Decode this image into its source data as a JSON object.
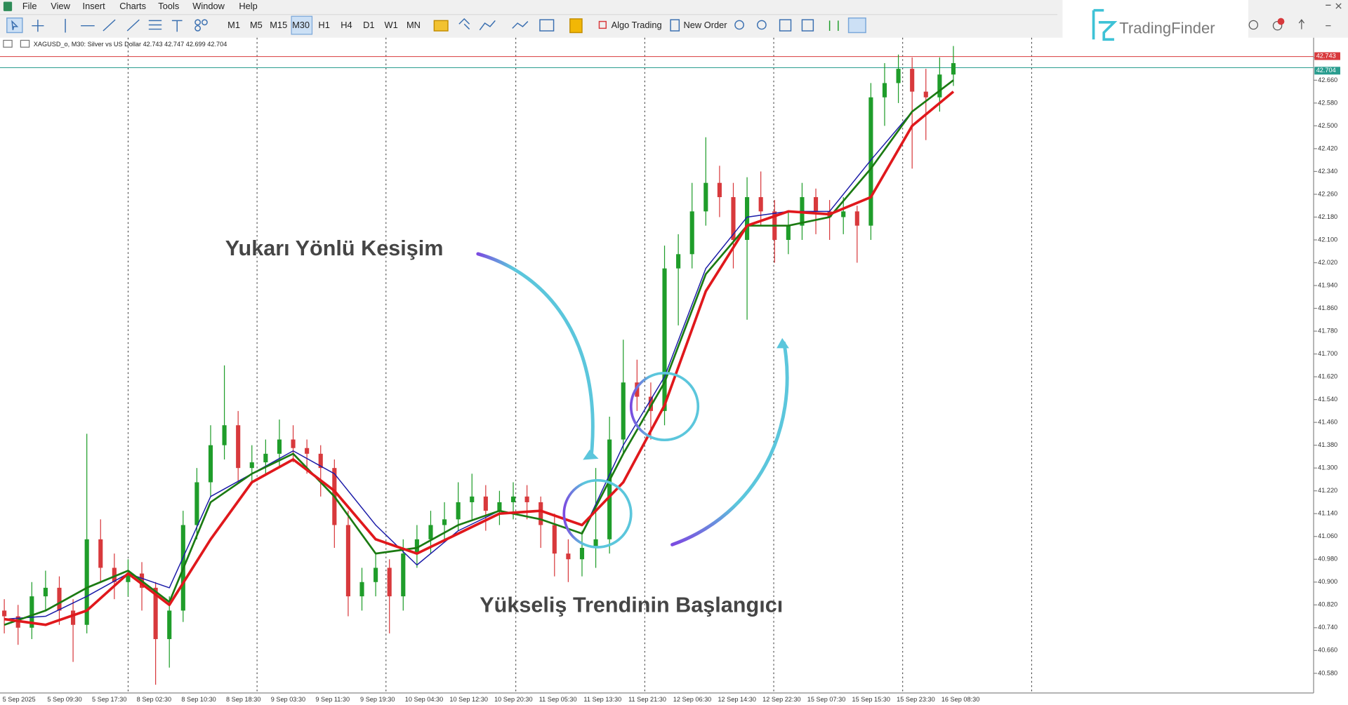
{
  "menu": [
    "File",
    "View",
    "Insert",
    "Charts",
    "Tools",
    "Window",
    "Help"
  ],
  "toolbar": {
    "timeframes": [
      "M1",
      "M5",
      "M15",
      "M30",
      "H1",
      "H4",
      "D1",
      "W1",
      "MN"
    ],
    "active_timeframe": "M30",
    "algo_trading": "Algo Trading",
    "new_order": "New Order"
  },
  "logo": "TradingFinder",
  "chart_data": {
    "type": "candlestick",
    "title": "XAGUSD_o, M30:  Silver vs US Dollar  42.743 42.747 42.699 42.704",
    "up_color": "#1f9d2a",
    "down_color": "#d8393c",
    "ylim": [
      40.511,
      42.806
    ],
    "yticks": [
      {
        "value": 42.74,
        "label": "42.740"
      },
      {
        "value": 42.66,
        "label": "42.660"
      },
      {
        "value": 42.58,
        "label": "42.580"
      },
      {
        "value": 42.5,
        "label": "42.500"
      },
      {
        "value": 42.42,
        "label": "42.420"
      },
      {
        "value": 42.34,
        "label": "42.340"
      },
      {
        "value": 42.26,
        "label": "42.260"
      },
      {
        "value": 42.18,
        "label": "42.180"
      },
      {
        "value": 42.1,
        "label": "42.100"
      },
      {
        "value": 42.02,
        "label": "42.020"
      },
      {
        "value": 41.94,
        "label": "41.940"
      },
      {
        "value": 41.86,
        "label": "41.860"
      },
      {
        "value": 41.78,
        "label": "41.780"
      },
      {
        "value": 41.7,
        "label": "41.700"
      },
      {
        "value": 41.62,
        "label": "41.620"
      },
      {
        "value": 41.54,
        "label": "41.540"
      },
      {
        "value": 41.46,
        "label": "41.460"
      },
      {
        "value": 41.38,
        "label": "41.380"
      },
      {
        "value": 41.3,
        "label": "41.300"
      },
      {
        "value": 41.22,
        "label": "41.220"
      },
      {
        "value": 41.14,
        "label": "41.140"
      },
      {
        "value": 41.06,
        "label": "41.060"
      },
      {
        "value": 40.98,
        "label": "40.980"
      },
      {
        "value": 40.9,
        "label": "40.900"
      },
      {
        "value": 40.82,
        "label": "40.820"
      },
      {
        "value": 40.74,
        "label": "40.740"
      },
      {
        "value": 40.66,
        "label": "40.660"
      },
      {
        "value": 40.58,
        "label": "40.580"
      }
    ],
    "x_labels": [
      "5 Sep 2025",
      "5 Sep 09:30",
      "5 Sep 17:30",
      "8 Sep 02:30",
      "8 Sep 10:30",
      "8 Sep 18:30",
      "9 Sep 03:30",
      "9 Sep 11:30",
      "9 Sep 19:30",
      "10 Sep 04:30",
      "10 Sep 12:30",
      "10 Sep 20:30",
      "11 Sep 05:30",
      "11 Sep 13:30",
      "11 Sep 21:30",
      "12 Sep 06:30",
      "12 Sep 14:30",
      "12 Sep 22:30",
      "15 Sep 07:30",
      "15 Sep 15:30",
      "15 Sep 23:30",
      "16 Sep 08:30"
    ],
    "price_lines": [
      {
        "value": 42.743,
        "color": "#d8393c"
      },
      {
        "value": 42.704,
        "color": "#2a9d8f"
      }
    ],
    "candles": [
      [
        40.8,
        40.84,
        40.72,
        40.78
      ],
      [
        40.78,
        40.82,
        40.68,
        40.74
      ],
      [
        40.74,
        40.9,
        40.7,
        40.85
      ],
      [
        40.85,
        40.94,
        40.8,
        40.88
      ],
      [
        40.88,
        40.92,
        40.75,
        40.8
      ],
      [
        40.8,
        40.84,
        40.62,
        40.75
      ],
      [
        40.75,
        41.42,
        40.72,
        41.05
      ],
      [
        41.05,
        41.12,
        40.9,
        40.95
      ],
      [
        40.95,
        41.0,
        40.84,
        40.9
      ],
      [
        40.9,
        40.98,
        40.85,
        40.93
      ],
      [
        40.93,
        40.97,
        40.8,
        40.88
      ],
      [
        40.88,
        40.9,
        40.54,
        40.7
      ],
      [
        40.7,
        40.85,
        40.6,
        40.8
      ],
      [
        40.8,
        41.15,
        40.76,
        41.1
      ],
      [
        41.1,
        41.3,
        41.05,
        41.25
      ],
      [
        41.25,
        41.45,
        41.2,
        41.38
      ],
      [
        41.38,
        41.66,
        41.33,
        41.45
      ],
      [
        41.45,
        41.5,
        41.25,
        41.3
      ],
      [
        41.3,
        41.38,
        41.25,
        41.32
      ],
      [
        41.32,
        41.4,
        41.28,
        41.35
      ],
      [
        41.35,
        41.47,
        41.3,
        41.4
      ],
      [
        41.4,
        41.45,
        41.32,
        41.37
      ],
      [
        41.37,
        41.4,
        41.28,
        41.35
      ],
      [
        41.35,
        41.38,
        41.2,
        41.3
      ],
      [
        41.3,
        41.33,
        41.02,
        41.1
      ],
      [
        41.1,
        41.15,
        40.78,
        40.85
      ],
      [
        40.85,
        40.95,
        40.8,
        40.9
      ],
      [
        40.9,
        41.0,
        40.85,
        40.95
      ],
      [
        40.95,
        40.98,
        40.72,
        40.85
      ],
      [
        40.85,
        41.05,
        40.8,
        41.0
      ],
      [
        41.0,
        41.1,
        40.95,
        41.05
      ],
      [
        41.05,
        41.15,
        41.0,
        41.1
      ],
      [
        41.1,
        41.18,
        41.05,
        41.12
      ],
      [
        41.12,
        41.25,
        41.08,
        41.18
      ],
      [
        41.18,
        41.28,
        41.12,
        41.2
      ],
      [
        41.2,
        41.24,
        41.08,
        41.15
      ],
      [
        41.15,
        41.22,
        41.1,
        41.18
      ],
      [
        41.18,
        41.25,
        41.12,
        41.2
      ],
      [
        41.2,
        41.24,
        41.12,
        41.18
      ],
      [
        41.18,
        41.2,
        41.02,
        41.1
      ],
      [
        41.1,
        41.14,
        40.92,
        41.0
      ],
      [
        41.0,
        41.05,
        40.9,
        40.98
      ],
      [
        40.98,
        41.08,
        40.92,
        41.02
      ],
      [
        41.02,
        41.3,
        40.95,
        41.05
      ],
      [
        41.05,
        41.48,
        41.0,
        41.4
      ],
      [
        41.4,
        41.75,
        41.35,
        41.6
      ],
      [
        41.6,
        41.68,
        41.5,
        41.55
      ],
      [
        41.55,
        41.6,
        41.4,
        41.5
      ],
      [
        41.5,
        42.08,
        41.45,
        42.0
      ],
      [
        42.0,
        42.12,
        41.8,
        42.05
      ],
      [
        42.05,
        42.3,
        42.0,
        42.2
      ],
      [
        42.2,
        42.46,
        42.15,
        42.3
      ],
      [
        42.3,
        42.36,
        42.18,
        42.25
      ],
      [
        42.25,
        42.3,
        42.0,
        42.1
      ],
      [
        42.1,
        42.32,
        41.82,
        42.25
      ],
      [
        42.25,
        42.34,
        42.15,
        42.2
      ],
      [
        42.2,
        42.24,
        42.02,
        42.1
      ],
      [
        42.1,
        42.2,
        42.05,
        42.15
      ],
      [
        42.15,
        42.3,
        42.1,
        42.25
      ],
      [
        42.25,
        42.28,
        42.12,
        42.2
      ],
      [
        42.2,
        42.24,
        42.1,
        42.18
      ],
      [
        42.18,
        42.25,
        42.12,
        42.2
      ],
      [
        42.2,
        42.22,
        42.02,
        42.15
      ],
      [
        42.15,
        42.65,
        42.1,
        42.6
      ],
      [
        42.6,
        42.72,
        42.5,
        42.65
      ],
      [
        42.65,
        42.75,
        42.58,
        42.7
      ],
      [
        42.7,
        42.74,
        42.35,
        42.62
      ],
      [
        42.62,
        42.7,
        42.45,
        42.6
      ],
      [
        42.6,
        42.74,
        42.55,
        42.68
      ],
      [
        42.68,
        42.78,
        42.64,
        42.72
      ]
    ],
    "series": [
      {
        "color": "#1a1aa8",
        "width": 1.2,
        "values": [
          40.77,
          40.78,
          40.85,
          40.93,
          40.88,
          41.2,
          41.28,
          41.36,
          41.28,
          41.1,
          40.96,
          41.08,
          41.15,
          41.12,
          41.07,
          41.38,
          41.62,
          42.0,
          42.18,
          42.2,
          42.2,
          42.38,
          42.55,
          42.66
        ]
      },
      {
        "color": "#1b7a12",
        "width": 2.2,
        "values": [
          40.75,
          40.8,
          40.88,
          40.94,
          40.83,
          41.18,
          41.28,
          41.35,
          41.2,
          41.0,
          41.02,
          41.1,
          41.15,
          41.12,
          41.07,
          41.35,
          41.6,
          41.98,
          42.15,
          42.15,
          42.18,
          42.35,
          42.55,
          42.66
        ]
      },
      {
        "color": "#e0181c",
        "width": 3,
        "values": [
          40.77,
          40.75,
          40.8,
          40.93,
          40.82,
          41.05,
          41.25,
          41.33,
          41.22,
          41.05,
          41.0,
          41.07,
          41.14,
          41.15,
          41.1,
          41.25,
          41.52,
          41.92,
          42.15,
          42.2,
          42.19,
          42.25,
          42.5,
          42.62
        ]
      }
    ],
    "annotations": [
      "Yukarı Yönlü Kesişim",
      "Yükseliş Trendinin Başlangıcı"
    ]
  }
}
